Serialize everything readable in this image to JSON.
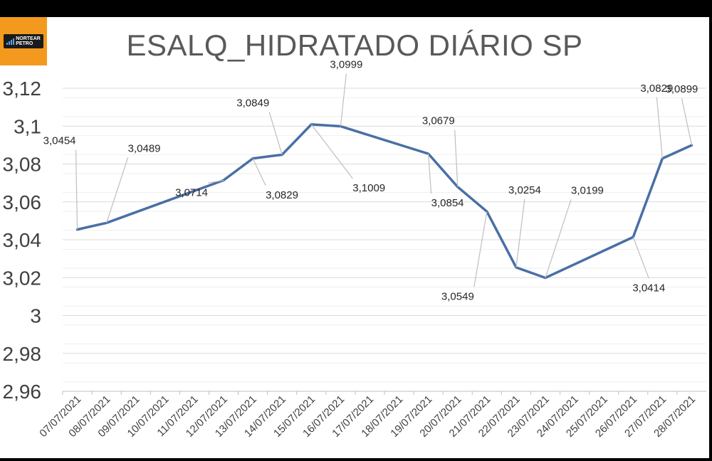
{
  "logo": {
    "text_line1": "NORTEAR",
    "text_line2": "PETRO"
  },
  "chart_data": {
    "type": "line",
    "title": "ESALQ_HIDRATADO DIÁRIO SP",
    "xlabel": "",
    "ylabel": "",
    "categories": [
      "07/07/2021",
      "08/07/2021",
      "09/07/2021",
      "10/07/2021",
      "11/07/2021",
      "12/07/2021",
      "13/07/2021",
      "14/07/2021",
      "15/07/2021",
      "16/07/2021",
      "17/07/2021",
      "18/07/2021",
      "19/07/2021",
      "20/07/2021",
      "21/07/2021",
      "22/07/2021",
      "23/07/2021",
      "24/07/2021",
      "25/07/2021",
      "26/07/2021",
      "27/07/2021",
      "28/07/2021"
    ],
    "points": [
      {
        "x": "07/07/2021",
        "y": 3.0454,
        "label": "3,0454"
      },
      {
        "x": "08/07/2021",
        "y": 3.0489,
        "label": "3,0489"
      },
      {
        "x": "12/07/2021",
        "y": 3.0714,
        "label": "3,0714"
      },
      {
        "x": "13/07/2021",
        "y": 3.0829,
        "label": "3,0829"
      },
      {
        "x": "14/07/2021",
        "y": 3.0849,
        "label": "3,0849"
      },
      {
        "x": "15/07/2021",
        "y": 3.1009,
        "label": "3,1009"
      },
      {
        "x": "16/07/2021",
        "y": 3.0999,
        "label": "3,0999"
      },
      {
        "x": "19/07/2021",
        "y": 3.0854,
        "label": "3,0854"
      },
      {
        "x": "20/07/2021",
        "y": 3.0679,
        "label": "3,0679"
      },
      {
        "x": "21/07/2021",
        "y": 3.0549,
        "label": "3,0549"
      },
      {
        "x": "22/07/2021",
        "y": 3.0254,
        "label": "3,0254"
      },
      {
        "x": "23/07/2021",
        "y": 3.0199,
        "label": "3,0199"
      },
      {
        "x": "26/07/2021",
        "y": 3.0414,
        "label": "3,0414"
      },
      {
        "x": "27/07/2021",
        "y": 3.0829,
        "label": "3,0829"
      },
      {
        "x": "28/07/2021",
        "y": 3.0899,
        "label": "3,0899"
      }
    ],
    "ylim": [
      2.96,
      3.12
    ],
    "yticks": [
      2.96,
      2.98,
      3.0,
      3.02,
      3.04,
      3.06,
      3.08,
      3.1,
      3.12
    ],
    "ytick_labels": [
      "2,96",
      "2,98",
      "3",
      "3,02",
      "3,04",
      "3,06",
      "3,08",
      "3,1",
      "3,12"
    ],
    "grid": true,
    "legend": "none",
    "line_color": "#4a6fa5",
    "grid_color": "#d9d9d9"
  }
}
